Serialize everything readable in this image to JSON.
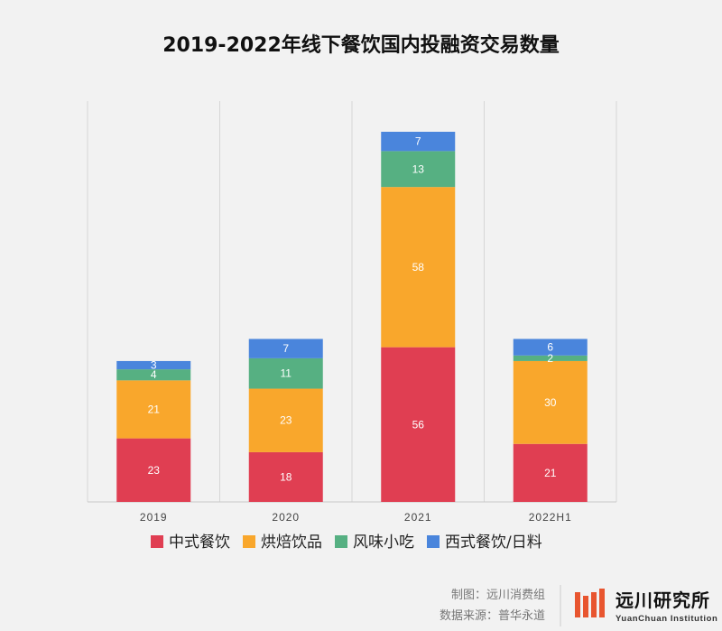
{
  "chart_data": {
    "type": "bar",
    "stacked": true,
    "title": "2019-2022年线下餐饮国内投融资交易数量",
    "categories": [
      "2019",
      "2020",
      "2021",
      "2022H1"
    ],
    "series": [
      {
        "name": "中式餐饮",
        "color": "#e03e52",
        "values": [
          23,
          18,
          56,
          21
        ]
      },
      {
        "name": "烘焙饮品",
        "color": "#f9a72c",
        "values": [
          21,
          23,
          58,
          30
        ]
      },
      {
        "name": "风味小吃",
        "color": "#56b082",
        "values": [
          4,
          11,
          13,
          2
        ]
      },
      {
        "name": "西式餐饮/日料",
        "color": "#4a85dc",
        "values": [
          3,
          7,
          7,
          6
        ]
      }
    ],
    "ylim": [
      0,
      140
    ],
    "grid": false,
    "legend_position": "bottom"
  },
  "footer": {
    "credit": "制图：远川消费组",
    "source": "数据来源：普华永道"
  },
  "logo": {
    "name_cn": "远川研究所",
    "name_en": "YuanChuan Institution",
    "color": "#e8552f"
  }
}
